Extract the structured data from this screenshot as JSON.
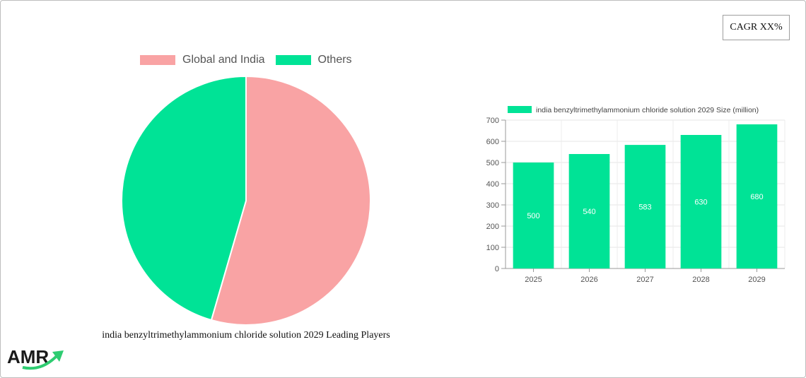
{
  "cagr_label": "CAGR XX%",
  "pie": {
    "caption": "india benzyltrimethylammonium chloride solution 2029 Leading Players",
    "legend": [
      {
        "label": "Global and India",
        "color": "#f9a3a4"
      },
      {
        "label": "Others",
        "color": "#00e396"
      }
    ]
  },
  "logo": {
    "text": "AMR"
  },
  "chart_data": [
    {
      "type": "pie",
      "title": "india benzyltrimethylammonium chloride solution 2029 Leading Players",
      "labels": [
        "Global and India",
        "Others"
      ],
      "values": [
        54.5,
        45.5
      ],
      "colors": [
        "#f9a3a4",
        "#00e396"
      ],
      "legend": "top"
    },
    {
      "type": "bar",
      "categories": [
        "2025",
        "2026",
        "2027",
        "2028",
        "2029"
      ],
      "series": [
        {
          "name": "india benzyltrimethylammonium chloride solution 2029 Size (million)",
          "values": [
            500,
            540,
            583,
            630,
            680
          ],
          "color": "#00e396"
        }
      ],
      "ylim": [
        0,
        700
      ],
      "yticks": [
        0,
        100,
        200,
        300,
        400,
        500,
        600,
        700
      ],
      "grid": true,
      "legend": "top"
    }
  ]
}
